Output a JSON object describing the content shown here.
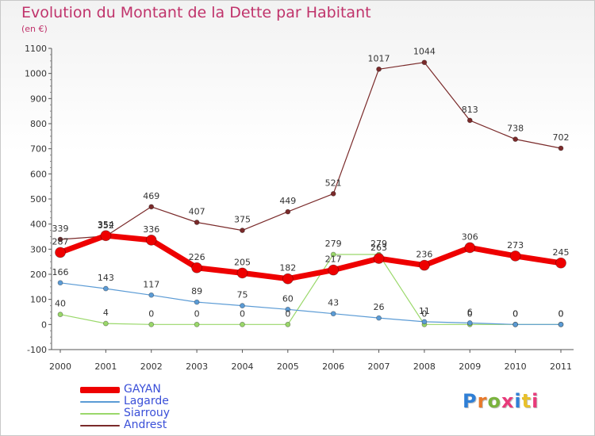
{
  "header": {
    "title": "Evolution du Montant de la Dette par Habitant",
    "subtitle": "(en €)"
  },
  "brand": {
    "text": "Proxiti",
    "colors": [
      "#2f7fd6",
      "#e8792a",
      "#7ab33e",
      "#e83a7a",
      "#2f7fd6",
      "#e8c02a",
      "#e83a7a"
    ]
  },
  "chart_data": {
    "type": "line",
    "x": [
      "2000",
      "2001",
      "2002",
      "2003",
      "2004",
      "2005",
      "2006",
      "2007",
      "2008",
      "2009",
      "2010",
      "2011"
    ],
    "ylim": [
      -100,
      1100
    ],
    "yticks": [
      "-100",
      "0",
      "100",
      "200",
      "300",
      "400",
      "500",
      "600",
      "700",
      "800",
      "900",
      "1000",
      "1100"
    ],
    "grid": false,
    "legend_position": "bottom-left",
    "series": [
      {
        "name": "GAYAN",
        "color": "#ee0000",
        "values": [
          287,
          354,
          336,
          226,
          205,
          182,
          217,
          263,
          236,
          306,
          273,
          245
        ],
        "labels": [
          "287",
          "354",
          "336",
          "226",
          "205",
          "182",
          "217",
          "263",
          "236",
          "306",
          "273",
          "245"
        ]
      },
      {
        "name": "Lagarde",
        "color": "#5b9bd5",
        "values": [
          166,
          143,
          117,
          89,
          75,
          60,
          43,
          26,
          11,
          6,
          0,
          0
        ],
        "labels": [
          "166",
          "143",
          "117",
          "89",
          "75",
          "60",
          "43",
          "26",
          "11",
          "6",
          "0",
          "0"
        ]
      },
      {
        "name": "Siarrouy",
        "color": "#9ad86a",
        "values": [
          40,
          4,
          0,
          0,
          0,
          0,
          279,
          279,
          0,
          0,
          0,
          0
        ],
        "labels": [
          "40",
          "4",
          "0",
          "0",
          "0",
          "0",
          "279",
          "279",
          "0",
          "0",
          "0",
          "0"
        ]
      },
      {
        "name": "Andrest",
        "color": "#7a2a2a",
        "values": [
          339,
          352,
          469,
          407,
          375,
          449,
          521,
          1017,
          1044,
          813,
          738,
          702
        ],
        "labels": [
          "339",
          "352",
          "469",
          "407",
          "375",
          "449",
          "521",
          "1017",
          "1044",
          "813",
          "738",
          "702"
        ]
      }
    ]
  }
}
